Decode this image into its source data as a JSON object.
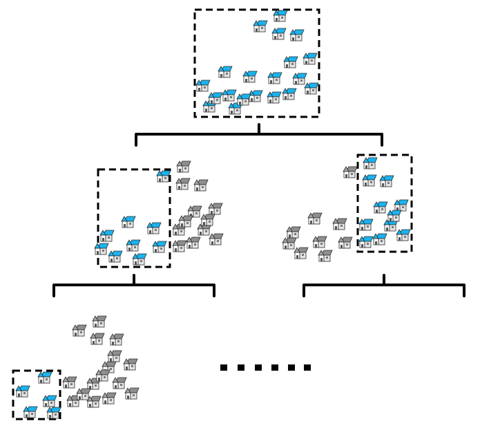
{
  "colors": {
    "background": "#ffffff",
    "selected_roof": "#1ab3ee",
    "unselected_roof": "#8e8e8e",
    "wall": "#ffffff",
    "outline": "#2a2a2a",
    "bracket": "#000000",
    "dashed_box": "#000000",
    "ellipsis": "#000000"
  },
  "icons": {
    "house": "house-icon"
  },
  "legend": {
    "selected_houses": "blue-roof-house-icon",
    "unselected_houses": "gray-roof-house-icon"
  },
  "levels": [
    {
      "name": "level-1",
      "selected_houses": 20,
      "unselected_houses": 0
    },
    {
      "name": "level-2-left",
      "selected_houses": 9,
      "unselected_houses": 12
    },
    {
      "name": "level-2-right",
      "selected_houses": 11,
      "unselected_houses": 9
    },
    {
      "name": "level-3-left",
      "selected_houses": 5,
      "unselected_houses": 16
    }
  ],
  "continuation": "ellipsis"
}
